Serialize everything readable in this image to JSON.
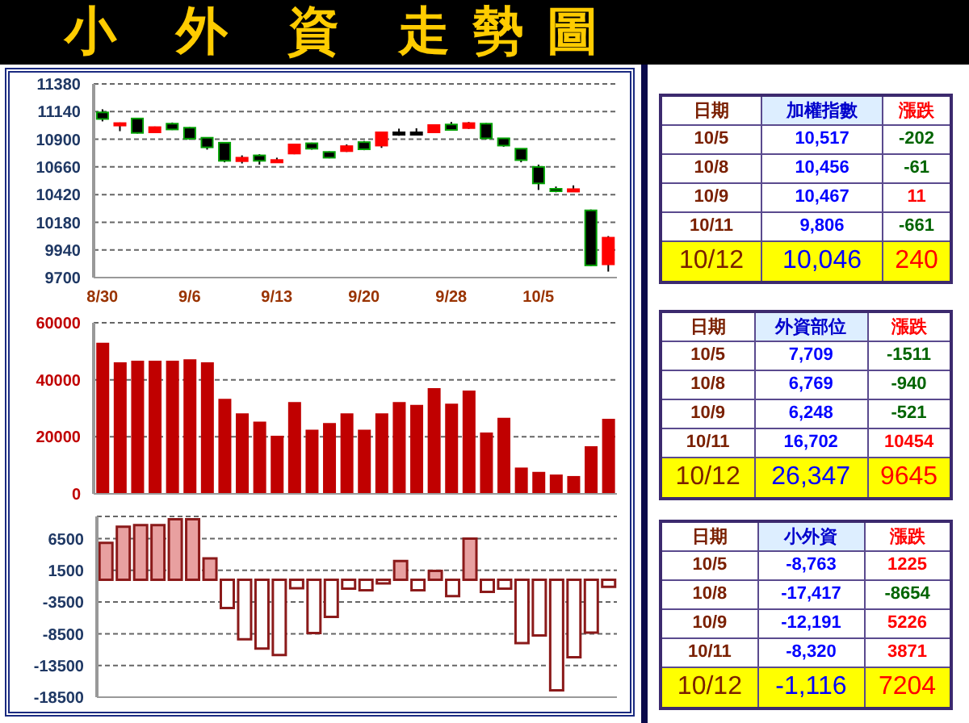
{
  "chart_data": [
    {
      "type": "candlestick",
      "title": "小 外 資 走勢圖",
      "categories": [
        "8/30",
        null,
        null,
        null,
        null,
        "9/6",
        null,
        null,
        null,
        null,
        "9/13",
        null,
        null,
        null,
        null,
        "9/20",
        null,
        null,
        null,
        null,
        "9/28",
        null,
        null,
        null,
        null,
        "10/5",
        null,
        null,
        null,
        null
      ],
      "ohlc": [
        [
          11133,
          11160,
          11055,
          11076
        ],
        [
          11030,
          11045,
          10970,
          11040
        ],
        [
          11080,
          11085,
          10950,
          10955
        ],
        [
          10960,
          11010,
          10955,
          11005
        ],
        [
          11035,
          11045,
          10980,
          10985
        ],
        [
          11000,
          11005,
          10895,
          10905
        ],
        [
          10913,
          10915,
          10810,
          10830
        ],
        [
          10870,
          10870,
          10700,
          10713
        ],
        [
          10710,
          10760,
          10690,
          10740
        ],
        [
          10760,
          10770,
          10680,
          10713
        ],
        [
          10713,
          10740,
          10705,
          10720
        ],
        [
          10776,
          10860,
          10770,
          10855
        ],
        [
          10865,
          10870,
          10810,
          10818
        ],
        [
          10790,
          10795,
          10735,
          10740
        ],
        [
          10797,
          10855,
          10790,
          10840
        ],
        [
          10875,
          10885,
          10805,
          10813
        ],
        [
          10845,
          10960,
          10825,
          10960
        ],
        [
          10960,
          10992,
          10930,
          10960
        ],
        [
          10960,
          10995,
          10935,
          10960
        ],
        [
          10960,
          11030,
          10955,
          11023
        ],
        [
          11028,
          11050,
          10975,
          10981
        ],
        [
          10997,
          11050,
          10990,
          11040
        ],
        [
          11035,
          11040,
          10900,
          10908
        ],
        [
          10908,
          10910,
          10835,
          10845
        ],
        [
          10818,
          10820,
          10700,
          10719
        ],
        [
          10660,
          10680,
          10460,
          10517
        ],
        [
          10470,
          10490,
          10440,
          10456
        ],
        [
          10460,
          10500,
          10455,
          10467
        ],
        [
          10283,
          10290,
          9800,
          9806
        ],
        [
          9815,
          10060,
          9752,
          10046
        ]
      ],
      "colors": [
        "#000000",
        "#ff0000",
        "#000000",
        "#ff0000",
        "#000000",
        "#000000",
        "#000000",
        "#000000",
        "#ff0000",
        "#000000",
        "#ff0000",
        "#ff0000",
        "#000000",
        "#000000",
        "#ff0000",
        "#000000",
        "#ff0000",
        "#000000",
        "#000000",
        "#ff0000",
        "#000000",
        "#ff0000",
        "#000000",
        "#000000",
        "#000000",
        "#000000",
        "#000000",
        "#ff0000",
        "#000000",
        "#ff0000"
      ],
      "ylim": [
        9700,
        11380
      ],
      "yticks": [
        9700,
        9940,
        10180,
        10420,
        10660,
        10900,
        11140,
        11380
      ],
      "grid": "y"
    },
    {
      "type": "bar",
      "categories": [
        null,
        null,
        null,
        null,
        null,
        null,
        null,
        null,
        null,
        null,
        null,
        null,
        null,
        null,
        null,
        null,
        null,
        null,
        null,
        null,
        null,
        null,
        null,
        null,
        null,
        null,
        null,
        null,
        null,
        null
      ],
      "values": [
        53000,
        46100,
        46700,
        46700,
        46700,
        47200,
        46100,
        33300,
        28200,
        25300,
        20400,
        32200,
        22500,
        24800,
        28200,
        22500,
        28200,
        32200,
        31200,
        37100,
        31600,
        36200,
        21500,
        26700,
        9220,
        7709,
        6769,
        6248,
        16702,
        26347
      ],
      "color": "#c00000",
      "ylim": [
        0,
        60000
      ],
      "yticks": [
        0,
        20000,
        40000,
        60000
      ],
      "grid": "y"
    },
    {
      "type": "bar",
      "categories": [
        null,
        null,
        null,
        null,
        null,
        null,
        null,
        null,
        null,
        null,
        null,
        null,
        null,
        null,
        null,
        null,
        null,
        null,
        null,
        null,
        null,
        null,
        null,
        null,
        null,
        null,
        null,
        null,
        null,
        null
      ],
      "values": [
        5840,
        8380,
        8630,
        8630,
        9540,
        9540,
        3370,
        -4440,
        -9370,
        -10850,
        -11840,
        -1320,
        -8380,
        -5840,
        -1400,
        -1640,
        -575,
        2960,
        -1640,
        1400,
        -2550,
        6500,
        -1890,
        -1400,
        -9988,
        -8763,
        -17417,
        -12191,
        -8320,
        -1116
      ],
      "color": "#8b1a1a",
      "colors": [
        "#e8a0a0",
        "#e8a0a0",
        "#e8a0a0",
        "#e8a0a0",
        "#e8a0a0",
        "#e8a0a0",
        "#e8a0a0",
        "#ffffff",
        "#ffffff",
        "#ffffff",
        "#ffffff",
        "#ffffff",
        "#ffffff",
        "#ffffff",
        "#ffffff",
        "#ffffff",
        "#ffffff",
        "#e8a0a0",
        "#ffffff",
        "#e8a0a0",
        "#ffffff",
        "#e8a0a0",
        "#ffffff",
        "#ffffff",
        "#ffffff",
        "#ffffff",
        "#ffffff",
        "#ffffff",
        "#ffffff",
        "#ffffff"
      ],
      "ylim": [
        -18500,
        10000
      ],
      "yticks": [
        -18500,
        -13500,
        -8500,
        -3500,
        1500,
        6500
      ],
      "grid": "y"
    },
    {
      "type": "other",
      "annotations": [
        "日期",
        "加權指數",
        "漲跌",
        "10/5",
        "10,517",
        "-202",
        "10/8",
        "10,456",
        "-61",
        "10/9",
        "10,467",
        "11",
        "10/11",
        "9,806",
        "-661",
        "10/12",
        "10,046",
        "240"
      ],
      "colors": [
        "#006400",
        "#006400",
        "#ff0000",
        "#006400",
        "#ff0000"
      ]
    },
    {
      "type": "other",
      "annotations": [
        "日期",
        "外資部位",
        "漲跌",
        "10/5",
        "7,709",
        "-1511",
        "10/8",
        "6,769",
        "-940",
        "10/9",
        "6,248",
        "-521",
        "10/11",
        "16,702",
        "10454",
        "10/12",
        "26,347",
        "9645"
      ],
      "colors": [
        "#006400",
        "#006400",
        "#006400",
        "#ff0000",
        "#ff0000"
      ]
    },
    {
      "type": "other",
      "annotations": [
        "日期",
        "小外資",
        "漲跌",
        "10/5",
        "-8,763",
        "1225",
        "10/8",
        "-17,417",
        "-8654",
        "10/9",
        "-12,191",
        "5226",
        "10/11",
        "-8,320",
        "3871",
        "10/12",
        "-1,116",
        "7204"
      ],
      "colors": [
        "#ff0000",
        "#006400",
        "#ff0000",
        "#ff0000",
        "#ff0000"
      ]
    }
  ]
}
